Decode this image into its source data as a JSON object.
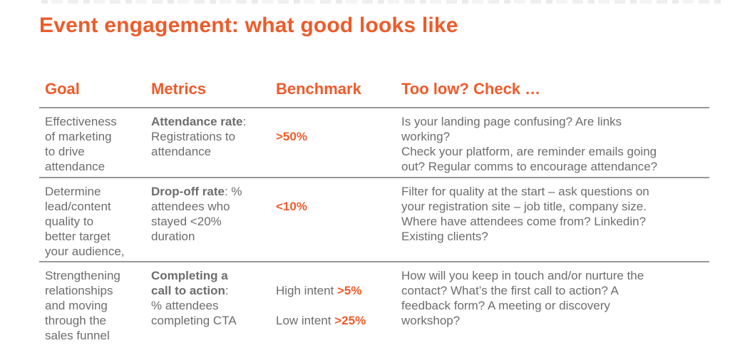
{
  "page": {
    "title": "Event engagement: what good looks like"
  },
  "colors": {
    "accent": "#ee5b2b",
    "body_text": "#6d6d6d",
    "rule": "#989898"
  },
  "table": {
    "columns": [
      {
        "label": "Goal"
      },
      {
        "label": "Metrics"
      },
      {
        "label": "Benchmark"
      },
      {
        "label": "Too low? Check …"
      }
    ],
    "rows": [
      {
        "goal": "Effectiveness\nof marketing\nto drive\nattendance",
        "metric_term": "Attendance rate",
        "metric_rest": ":\nRegistrations to\nattendance",
        "benchmark": [
          {
            "label": "",
            "value": ">50%"
          }
        ],
        "check": "Is your landing page confusing? Are links\nworking?\nCheck your platform, are reminder emails going\nout? Regular comms to encourage attendance?"
      },
      {
        "goal": "Determine\nlead/content\nquality to\nbetter target\nyour audience,",
        "metric_term": "Drop-off rate",
        "metric_rest": ": %\nattendees who\nstayed <20%\nduration",
        "benchmark": [
          {
            "label": "",
            "value": "<10%"
          }
        ],
        "check": "Filter for quality at the start – ask questions on\nyour registration site – job title, company size.\nWhere have attendees come from? Linkedin?\nExisting clients?"
      },
      {
        "goal": "Strengthening\nrelationships\nand moving\nthrough the\nsales funnel",
        "metric_term": "Completing a\ncall to action",
        "metric_rest": ":\n% attendees\ncompleting CTA",
        "benchmark": [
          {
            "label": "High intent ",
            "value": ">5%"
          },
          {
            "label": "Low intent ",
            "value": ">25%"
          }
        ],
        "check": "How will you keep in touch and/or nurture the\ncontact? What’s the first call to action? A\nfeedback form? A meeting or discovery\nworkshop?"
      }
    ]
  }
}
